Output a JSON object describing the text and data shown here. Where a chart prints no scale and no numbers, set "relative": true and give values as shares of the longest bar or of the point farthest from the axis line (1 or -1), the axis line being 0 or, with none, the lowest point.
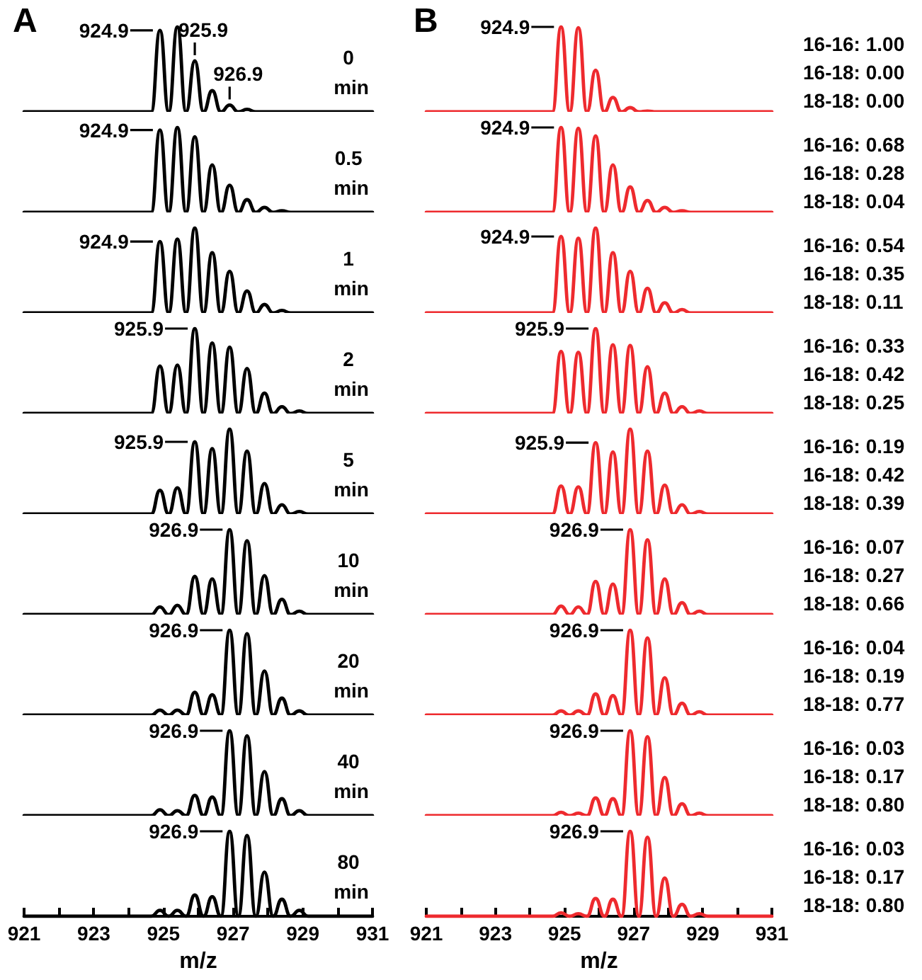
{
  "chart_data": [
    {
      "type": "line",
      "title": "A",
      "x": [
        921,
        924.65,
        924.9,
        925.15,
        925.4,
        925.65,
        925.9,
        926.15,
        926.4,
        926.65,
        926.9,
        927.15,
        927.4,
        927.65,
        927.9,
        928.15,
        928.4,
        928.65,
        928.9,
        929.15,
        931
      ],
      "values": [
        0,
        0,
        0.96,
        0,
        1,
        0,
        0.6,
        0,
        0.25,
        0,
        0.08,
        0,
        0.03,
        0,
        0,
        0,
        0,
        0,
        0,
        0,
        0
      ],
      "color": "#000000",
      "relative": true,
      "xlim": [
        921,
        931
      ],
      "tick_labels": false,
      "annotations": [
        {
          "text": "924.9",
          "x": 924.9,
          "y": 0.96
        },
        {
          "text": "925.9",
          "x": 925.9,
          "y": 0.6
        },
        {
          "text": "926.9",
          "x": 926.9,
          "y": 0.08
        },
        "0 min"
      ]
    },
    {
      "type": "line",
      "x": [
        921,
        924.65,
        924.9,
        925.15,
        925.4,
        925.65,
        925.9,
        926.15,
        926.4,
        926.65,
        926.9,
        927.15,
        927.4,
        927.65,
        927.9,
        928.15,
        928.4,
        928.65,
        928.9,
        929.15,
        931
      ],
      "values": [
        0,
        0,
        0.97,
        0,
        1,
        0,
        0.89,
        0,
        0.56,
        0,
        0.32,
        0,
        0.15,
        0,
        0.06,
        0,
        0.02,
        0,
        0,
        0,
        0
      ],
      "color": "#000000",
      "relative": true,
      "xlim": [
        921,
        931
      ],
      "tick_labels": false,
      "annotations": [
        {
          "text": "924.9",
          "x": 924.9,
          "y": 0.97
        },
        "0.5 min"
      ]
    },
    {
      "type": "line",
      "x": [
        921,
        924.65,
        924.9,
        925.15,
        925.4,
        925.65,
        925.9,
        926.15,
        926.4,
        926.65,
        926.9,
        927.15,
        927.4,
        927.65,
        927.9,
        928.15,
        928.4,
        928.65,
        928.9,
        929.15,
        931
      ],
      "values": [
        0,
        0,
        0.84,
        0,
        0.87,
        0,
        1,
        0,
        0.71,
        0,
        0.49,
        0,
        0.26,
        0,
        0.1,
        0,
        0.03,
        0,
        0,
        0,
        0
      ],
      "color": "#000000",
      "relative": true,
      "xlim": [
        921,
        931
      ],
      "tick_labels": false,
      "annotations": [
        {
          "text": "924.9",
          "x": 924.9,
          "y": 0.84
        },
        "1 min"
      ]
    },
    {
      "type": "line",
      "x": [
        921,
        924.65,
        924.9,
        925.15,
        925.4,
        925.65,
        925.9,
        926.15,
        926.4,
        926.65,
        926.9,
        927.15,
        927.4,
        927.65,
        927.9,
        928.15,
        928.4,
        928.65,
        928.9,
        929.15,
        931
      ],
      "values": [
        0,
        0,
        0.56,
        0,
        0.57,
        0,
        1,
        0,
        0.83,
        0,
        0.78,
        0,
        0.53,
        0,
        0.24,
        0,
        0.08,
        0,
        0.03,
        0,
        0
      ],
      "color": "#000000",
      "relative": true,
      "xlim": [
        921,
        931
      ],
      "tick_labels": false,
      "annotations": [
        {
          "text": "925.9",
          "x": 925.9,
          "y": 1
        },
        "2 min"
      ]
    },
    {
      "type": "line",
      "x": [
        921,
        924.65,
        924.9,
        925.15,
        925.4,
        925.65,
        925.9,
        926.15,
        926.4,
        926.65,
        926.9,
        927.15,
        927.4,
        927.65,
        927.9,
        928.15,
        928.4,
        928.65,
        928.9,
        929.15,
        931
      ],
      "values": [
        0,
        0,
        0.28,
        0,
        0.31,
        0,
        0.85,
        0,
        0.77,
        0,
        1,
        0,
        0.74,
        0,
        0.36,
        0,
        0.11,
        0,
        0.03,
        0,
        0
      ],
      "color": "#000000",
      "relative": true,
      "xlim": [
        921,
        931
      ],
      "tick_labels": false,
      "annotations": [
        {
          "text": "925.9",
          "x": 925.9,
          "y": 0.85
        },
        "5 min"
      ]
    },
    {
      "type": "line",
      "x": [
        921,
        924.65,
        924.9,
        925.15,
        925.4,
        925.65,
        925.9,
        926.15,
        926.4,
        926.65,
        926.9,
        927.15,
        927.4,
        927.65,
        927.9,
        928.15,
        928.4,
        928.65,
        928.9,
        929.15,
        931
      ],
      "values": [
        0,
        0,
        0.09,
        0,
        0.11,
        0,
        0.45,
        0,
        0.42,
        0,
        1,
        0,
        0.87,
        0,
        0.46,
        0,
        0.18,
        0,
        0.04,
        0,
        0
      ],
      "color": "#000000",
      "relative": true,
      "xlim": [
        921,
        931
      ],
      "tick_labels": false,
      "annotations": [
        {
          "text": "926.9",
          "x": 926.9,
          "y": 1
        },
        "10 min"
      ]
    },
    {
      "type": "line",
      "x": [
        921,
        924.65,
        924.9,
        925.15,
        925.4,
        925.65,
        925.9,
        926.15,
        926.4,
        926.65,
        926.9,
        927.15,
        927.4,
        927.65,
        927.9,
        928.15,
        928.4,
        928.65,
        928.9,
        929.15,
        931
      ],
      "values": [
        0,
        0,
        0.06,
        0,
        0.06,
        0,
        0.27,
        0,
        0.24,
        0,
        1,
        0,
        0.96,
        0,
        0.52,
        0,
        0.2,
        0,
        0.05,
        0,
        0
      ],
      "color": "#000000",
      "relative": true,
      "xlim": [
        921,
        931
      ],
      "tick_labels": false,
      "annotations": [
        {
          "text": "926.9",
          "x": 926.9,
          "y": 1
        },
        "20 min"
      ]
    },
    {
      "type": "line",
      "x": [
        921,
        924.65,
        924.9,
        925.15,
        925.4,
        925.65,
        925.9,
        926.15,
        926.4,
        926.65,
        926.9,
        927.15,
        927.4,
        927.65,
        927.9,
        928.15,
        928.4,
        928.65,
        928.9,
        929.15,
        931
      ],
      "values": [
        0,
        0,
        0.07,
        0,
        0.06,
        0,
        0.24,
        0,
        0.22,
        0,
        1,
        0,
        0.94,
        0,
        0.52,
        0,
        0.2,
        0,
        0.06,
        0,
        0
      ],
      "color": "#000000",
      "relative": true,
      "xlim": [
        921,
        931
      ],
      "tick_labels": false,
      "annotations": [
        {
          "text": "926.9",
          "x": 926.9,
          "y": 1
        },
        "40 min"
      ]
    },
    {
      "type": "line",
      "x": [
        921,
        924.65,
        924.9,
        925.15,
        925.4,
        925.65,
        925.9,
        926.15,
        926.4,
        926.65,
        926.9,
        927.15,
        927.4,
        927.65,
        927.9,
        928.15,
        928.4,
        928.65,
        928.9,
        929.15,
        931
      ],
      "values": [
        0,
        0,
        0.07,
        0,
        0.07,
        0,
        0.25,
        0,
        0.23,
        0,
        1,
        0,
        0.95,
        0,
        0.52,
        0,
        0.2,
        0,
        0.07,
        0,
        0
      ],
      "color": "#000000",
      "relative": true,
      "xlim": [
        921,
        931
      ],
      "xticks": [
        921,
        {
          "value": 922,
          "label": null
        },
        923,
        {
          "value": 924,
          "label": null
        },
        925,
        {
          "value": 926,
          "label": null
        },
        927,
        {
          "value": 928,
          "label": null
        },
        929,
        {
          "value": 930,
          "label": null
        },
        931
      ],
      "xlabel": "m/z",
      "annotations": [
        {
          "text": "926.9",
          "x": 926.9,
          "y": 1
        },
        "80 min"
      ]
    },
    {
      "type": "line",
      "title": "B",
      "x": [
        921,
        924.65,
        924.9,
        925.15,
        925.4,
        925.65,
        925.9,
        926.15,
        926.4,
        926.65,
        926.9,
        927.15,
        927.4,
        927.65,
        927.9,
        928.15,
        928.4,
        928.65,
        928.9,
        929.15,
        931
      ],
      "values": [
        0,
        0,
        1,
        0,
        0.99,
        0,
        0.49,
        0,
        0.17,
        0,
        0.05,
        0,
        0.01,
        0,
        0,
        0,
        0,
        0,
        0,
        0,
        0
      ],
      "color": "#ee2a2e",
      "relative": true,
      "xlim": [
        921,
        931
      ],
      "tick_labels": false,
      "annotations": [
        {
          "text": "924.9",
          "x": 924.9,
          "y": 1
        },
        "16-16: 1.00",
        "16-18: 0.00",
        "18-18: 0.00"
      ]
    },
    {
      "type": "line",
      "x": [
        921,
        924.65,
        924.9,
        925.15,
        925.4,
        925.65,
        925.9,
        926.15,
        926.4,
        926.65,
        926.9,
        927.15,
        927.4,
        927.65,
        927.9,
        928.15,
        928.4,
        928.65,
        928.9,
        929.15,
        931
      ],
      "values": [
        0,
        0,
        1,
        0,
        0.99,
        0,
        0.9,
        0,
        0.56,
        0,
        0.3,
        0,
        0.14,
        0,
        0.06,
        0,
        0.02,
        0,
        0,
        0,
        0
      ],
      "color": "#ee2a2e",
      "relative": true,
      "xlim": [
        921,
        931
      ],
      "tick_labels": false,
      "annotations": [
        {
          "text": "924.9",
          "x": 924.9,
          "y": 1
        },
        "16-16: 0.68",
        "16-18: 0.28",
        "18-18: 0.04"
      ]
    },
    {
      "type": "line",
      "x": [
        921,
        924.65,
        924.9,
        925.15,
        925.4,
        925.65,
        925.9,
        926.15,
        926.4,
        926.65,
        926.9,
        927.15,
        927.4,
        927.65,
        927.9,
        928.15,
        928.4,
        928.65,
        928.9,
        929.15,
        931
      ],
      "values": [
        0,
        0,
        0.9,
        0,
        0.88,
        0,
        1,
        0,
        0.71,
        0,
        0.49,
        0,
        0.29,
        0,
        0.12,
        0,
        0.04,
        0,
        0,
        0,
        0
      ],
      "color": "#ee2a2e",
      "relative": true,
      "xlim": [
        921,
        931
      ],
      "tick_labels": false,
      "annotations": [
        {
          "text": "924.9",
          "x": 924.9,
          "y": 0.9
        },
        "16-16: 0.54",
        "16-18: 0.35",
        "18-18: 0.11"
      ]
    },
    {
      "type": "line",
      "x": [
        921,
        924.65,
        924.9,
        925.15,
        925.4,
        925.65,
        925.9,
        926.15,
        926.4,
        926.65,
        926.9,
        927.15,
        927.4,
        927.65,
        927.9,
        928.15,
        928.4,
        928.65,
        928.9,
        929.15,
        931
      ],
      "values": [
        0,
        0,
        0.73,
        0,
        0.72,
        0,
        1,
        0,
        0.81,
        0,
        0.8,
        0,
        0.55,
        0,
        0.24,
        0,
        0.08,
        0,
        0.03,
        0,
        0
      ],
      "color": "#ee2a2e",
      "relative": true,
      "xlim": [
        921,
        931
      ],
      "tick_labels": false,
      "annotations": [
        {
          "text": "925.9",
          "x": 925.9,
          "y": 1
        },
        "16-16: 0.33",
        "16-18: 0.42",
        "18-18: 0.25"
      ]
    },
    {
      "type": "line",
      "x": [
        921,
        924.65,
        924.9,
        925.15,
        925.4,
        925.65,
        925.9,
        926.15,
        926.4,
        926.65,
        926.9,
        927.15,
        927.4,
        927.65,
        927.9,
        928.15,
        928.4,
        928.65,
        928.9,
        929.15,
        931
      ],
      "values": [
        0,
        0,
        0.33,
        0,
        0.32,
        0,
        0.84,
        0,
        0.73,
        0,
        1,
        0,
        0.74,
        0,
        0.34,
        0,
        0.11,
        0,
        0.03,
        0,
        0
      ],
      "color": "#ee2a2e",
      "relative": true,
      "xlim": [
        921,
        931
      ],
      "tick_labels": false,
      "annotations": [
        {
          "text": "925.9",
          "x": 925.9,
          "y": 0.84
        },
        "16-16: 0.19",
        "16-18: 0.42",
        "18-18: 0.39"
      ]
    },
    {
      "type": "line",
      "x": [
        921,
        924.65,
        924.9,
        925.15,
        925.4,
        925.65,
        925.9,
        926.15,
        926.4,
        926.65,
        926.9,
        927.15,
        927.4,
        927.65,
        927.9,
        928.15,
        928.4,
        928.65,
        928.9,
        929.15,
        931
      ],
      "values": [
        0,
        0,
        0.1,
        0,
        0.09,
        0,
        0.39,
        0,
        0.36,
        0,
        1,
        0,
        0.88,
        0,
        0.42,
        0,
        0.14,
        0,
        0.04,
        0,
        0
      ],
      "color": "#ee2a2e",
      "relative": true,
      "xlim": [
        921,
        931
      ],
      "tick_labels": false,
      "annotations": [
        {
          "text": "926.9",
          "x": 926.9,
          "y": 1
        },
        "16-16: 0.07",
        "16-18: 0.27",
        "18-18: 0.66"
      ]
    },
    {
      "type": "line",
      "x": [
        921,
        924.65,
        924.9,
        925.15,
        925.4,
        925.65,
        925.9,
        926.15,
        926.4,
        926.65,
        926.9,
        927.15,
        927.4,
        927.65,
        927.9,
        928.15,
        928.4,
        928.65,
        928.9,
        929.15,
        931
      ],
      "values": [
        0,
        0,
        0.05,
        0,
        0.05,
        0,
        0.25,
        0,
        0.23,
        0,
        1,
        0,
        0.91,
        0,
        0.44,
        0,
        0.14,
        0,
        0.04,
        0,
        0
      ],
      "color": "#ee2a2e",
      "relative": true,
      "xlim": [
        921,
        931
      ],
      "tick_labels": false,
      "annotations": [
        {
          "text": "926.9",
          "x": 926.9,
          "y": 1
        },
        "16-16: 0.04",
        "16-18: 0.19",
        "18-18: 0.77"
      ]
    },
    {
      "type": "line",
      "x": [
        921,
        924.65,
        924.9,
        925.15,
        925.4,
        925.65,
        925.9,
        926.15,
        926.4,
        926.65,
        926.9,
        927.15,
        927.4,
        927.65,
        927.9,
        928.15,
        928.4,
        928.65,
        928.9,
        929.15,
        931
      ],
      "values": [
        0,
        0,
        0.04,
        0,
        0.03,
        0,
        0.21,
        0,
        0.2,
        0,
        1,
        0,
        0.93,
        0,
        0.45,
        0,
        0.14,
        0,
        0.03,
        0,
        0
      ],
      "color": "#ee2a2e",
      "relative": true,
      "xlim": [
        921,
        931
      ],
      "tick_labels": false,
      "annotations": [
        {
          "text": "926.9",
          "x": 926.9,
          "y": 1
        },
        "16-16: 0.03",
        "16-18: 0.17",
        "18-18: 0.80"
      ]
    },
    {
      "type": "line",
      "x": [
        921,
        924.65,
        924.9,
        925.15,
        925.4,
        925.65,
        925.9,
        926.15,
        926.4,
        926.65,
        926.9,
        927.15,
        927.4,
        927.65,
        927.9,
        928.15,
        928.4,
        928.65,
        928.9,
        929.15,
        931
      ],
      "values": [
        0,
        0,
        0.04,
        0,
        0.03,
        0,
        0.21,
        0,
        0.2,
        0,
        1,
        0,
        0.93,
        0,
        0.45,
        0,
        0.14,
        0,
        0.03,
        0,
        0
      ],
      "color": "#ee2a2e",
      "relative": true,
      "xlim": [
        921,
        931
      ],
      "xticks": [
        921,
        {
          "value": 922,
          "label": null
        },
        923,
        {
          "value": 924,
          "label": null
        },
        925,
        {
          "value": 926,
          "label": null
        },
        927,
        {
          "value": 928,
          "label": null
        },
        929,
        {
          "value": 930,
          "label": null
        },
        931
      ],
      "xlabel": "m/z",
      "annotations": [
        {
          "text": "926.9",
          "x": 926.9,
          "y": 1
        },
        "16-16: 0.03",
        "16-18: 0.17",
        "18-18: 0.80"
      ]
    }
  ]
}
